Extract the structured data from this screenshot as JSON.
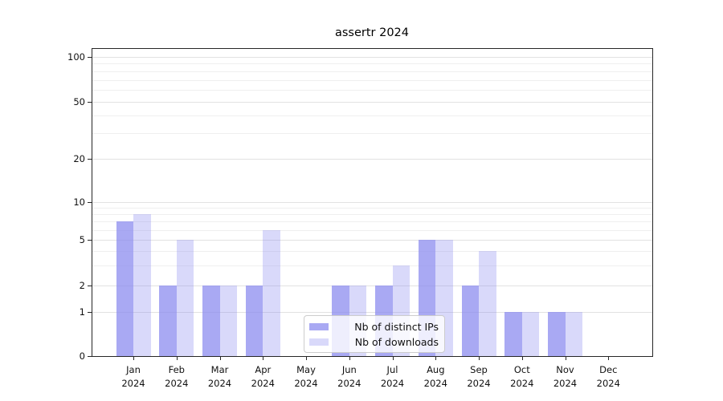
{
  "chart_data": {
    "type": "bar",
    "title": "assertr 2024",
    "categories": [
      "Jan",
      "Feb",
      "Mar",
      "Apr",
      "May",
      "Jun",
      "Jul",
      "Aug",
      "Sep",
      "Oct",
      "Nov",
      "Dec"
    ],
    "category_year": "2024",
    "series": [
      {
        "name": "Nb of distinct IPs",
        "color": "rgba(136,136,238,0.72)",
        "values": [
          7,
          2,
          2,
          2,
          0,
          2,
          2,
          5,
          2,
          1,
          1,
          0
        ]
      },
      {
        "name": "Nb of downloads",
        "color": "rgba(136,136,238,0.32)",
        "values": [
          8,
          5,
          2,
          6,
          0,
          2,
          3,
          5,
          4,
          1,
          1,
          0
        ]
      }
    ],
    "xlabel": "",
    "ylabel": "",
    "yaxis": {
      "scale": "log-like",
      "ticks": [
        0,
        1,
        2,
        5,
        10,
        20,
        50,
        100
      ],
      "minor_gridlines": [
        3,
        4,
        6,
        7,
        8,
        9,
        30,
        40,
        60,
        70,
        80,
        90
      ],
      "ylim": [
        0,
        100
      ]
    },
    "legend": {
      "position": "lower center"
    },
    "grid": true,
    "colors": {
      "bar_base": "#8888ee",
      "grid_major": "#e2e2e2",
      "grid_minor": "#efefef",
      "spine": "#262626",
      "background": "#ffffff"
    }
  }
}
